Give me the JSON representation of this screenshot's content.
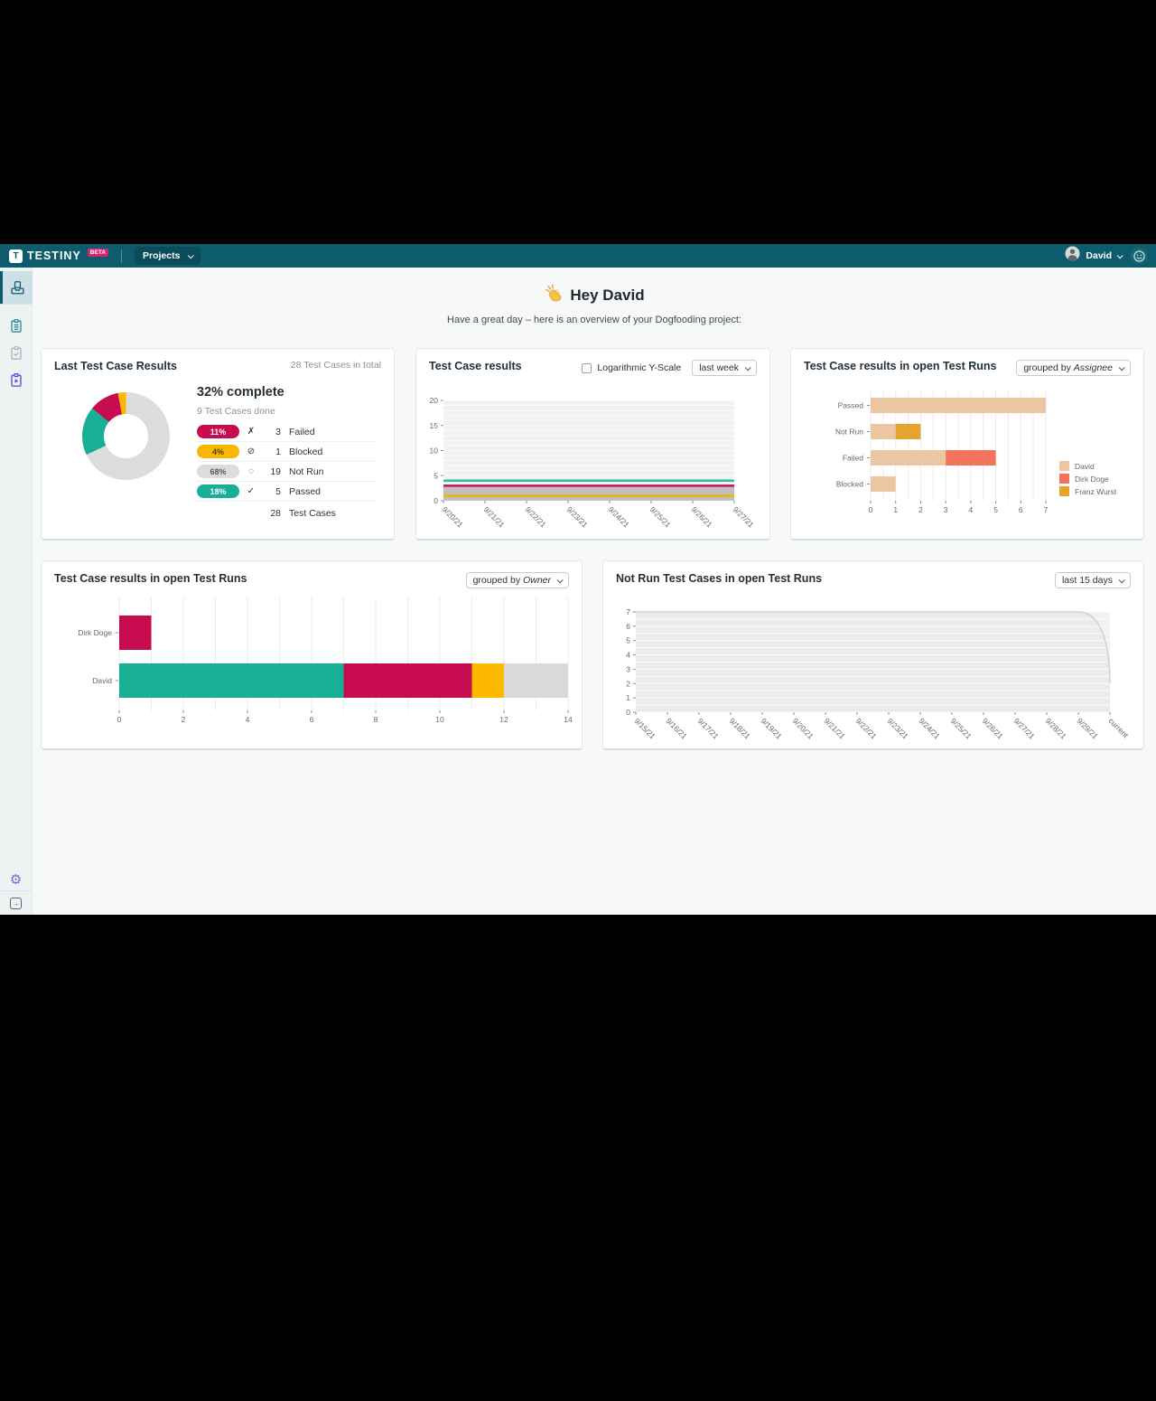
{
  "navbar": {
    "logo_text": "TESTINY",
    "logo_letter": "T",
    "beta_badge": "BETA",
    "projects_button": "Projects",
    "user_name": "David",
    "brand_color": "#0d5c6d"
  },
  "sidebar": {
    "icons": [
      "dashboard-icon",
      "test-cases-icon",
      "test-plans-icon",
      "test-runs-icon",
      "settings-gear-icon",
      "collapse-sidebar-icon"
    ]
  },
  "header": {
    "greeting": "Hey David",
    "subtitle": "Have a great day – here is an overview of your Dogfooding project:"
  },
  "cards": {
    "last_results": {
      "title": "Last Test Case Results",
      "total_note": "28 Test Cases in total",
      "complete": "32% complete",
      "done_label": "9 Test Cases done",
      "rows": [
        {
          "pct": "11%",
          "icon": "✗",
          "count": "3",
          "label": "Failed",
          "color": "#c60b4e",
          "text_color": "#ffffff"
        },
        {
          "pct": "4%",
          "icon": "⊘",
          "count": "1",
          "label": "Blocked",
          "color": "#f8b700",
          "text_color": "#5c4500"
        },
        {
          "pct": "68%",
          "icon": "◌",
          "count": "19",
          "label": "Not Run",
          "color": "#dcdcdc",
          "text_color": "#55595c"
        },
        {
          "pct": "18%",
          "icon": "✓",
          "count": "5",
          "label": "Passed",
          "color": "#17b094",
          "text_color": "#ffffff"
        }
      ],
      "total_count": "28",
      "total_text": "Test Cases"
    },
    "results_line": {
      "title": "Test Case results",
      "checkbox_label": "Logarithmic Y-Scale",
      "range_select": "last week"
    },
    "by_assignee": {
      "title": "Test Case results in open Test Runs",
      "select_prefix": "grouped by ",
      "select_value": "Assignee"
    },
    "by_owner": {
      "title": "Test Case results in open Test Runs",
      "select_prefix": "grouped by ",
      "select_value": "Owner"
    },
    "not_run": {
      "title": "Not Run Test Cases in open Test Runs",
      "range_select": "last 15 days"
    }
  },
  "chart_data": [
    {
      "id": "last-results-donut",
      "type": "pie",
      "title": "Last Test Case Results",
      "donut": true,
      "total": 28,
      "slices": [
        {
          "label": "Not Run",
          "value": 19,
          "pct": 68,
          "color": "#dcdcdc"
        },
        {
          "label": "Passed",
          "value": 5,
          "pct": 18,
          "color": "#17b094"
        },
        {
          "label": "Failed",
          "value": 3,
          "pct": 11,
          "color": "#c60b4e"
        },
        {
          "label": "Blocked",
          "value": 1,
          "pct": 4,
          "color": "#f8b700"
        }
      ]
    },
    {
      "id": "test-case-results",
      "type": "line",
      "title": "Test Case results",
      "x": [
        "9/20/21",
        "9/21/21",
        "9/22/21",
        "9/23/21",
        "9/24/21",
        "9/25/21",
        "9/26/21",
        "9/27/21"
      ],
      "ylim": [
        0,
        20
      ],
      "yticks": [
        0,
        5,
        10,
        15,
        20
      ],
      "grid_step": 1,
      "series": [
        {
          "name": "Not Run",
          "color": "rgba(150,150,155,0)",
          "fill": "rgba(150,150,155,0.55)",
          "width": 0,
          "values": [
            3,
            3,
            3,
            3,
            3,
            3,
            3,
            3
          ]
        },
        {
          "name": "Passed",
          "color": "#2bbfa4",
          "width": 2.5,
          "values": [
            4,
            4,
            4,
            4,
            4,
            4,
            4,
            4
          ]
        },
        {
          "name": "Failed",
          "color": "#c8104e",
          "width": 2.5,
          "values": [
            3,
            3,
            3,
            3,
            3,
            3,
            3,
            3
          ]
        },
        {
          "name": "Blocked",
          "color": "#f0b400",
          "width": 2.5,
          "values": [
            1,
            1,
            1,
            1,
            1,
            1,
            1,
            1
          ]
        }
      ]
    },
    {
      "id": "open-runs-by-assignee",
      "type": "hbar-stacked",
      "title": "Test Case results in open Test Runs (grouped by Assignee)",
      "categories": [
        "Passed",
        "Not Run",
        "Failed",
        "Blocked"
      ],
      "series": [
        {
          "name": "David",
          "color": "#ecc6a2",
          "values": [
            7,
            1,
            3,
            1
          ]
        },
        {
          "name": "Dirk Doge",
          "color": "#f4735c",
          "values": [
            0,
            0,
            2,
            0
          ]
        },
        {
          "name": "Franz Wurst",
          "color": "#e5a42e",
          "values": [
            0,
            1,
            0,
            0
          ]
        }
      ],
      "xlim": [
        0,
        7
      ],
      "xticks": [
        0,
        1,
        2,
        3,
        4,
        5,
        6,
        7
      ],
      "grid_step": 0.5,
      "legend": true
    },
    {
      "id": "open-runs-by-owner",
      "type": "hbar-stacked",
      "title": "Test Case results in open Test Runs (grouped by Owner)",
      "categories": [
        "Dirk Doge",
        "David"
      ],
      "series": [
        {
          "name": "Passed",
          "color": "#17b094",
          "values": [
            0,
            7
          ]
        },
        {
          "name": "Failed",
          "color": "#c60b4e",
          "values": [
            1,
            4
          ]
        },
        {
          "name": "Blocked",
          "color": "#fdb800",
          "values": [
            0,
            1
          ]
        },
        {
          "name": "Not Run",
          "color": "#d9d9d9",
          "values": [
            0,
            2
          ]
        }
      ],
      "xlim": [
        0,
        14
      ],
      "xticks": [
        0,
        2,
        4,
        6,
        8,
        10,
        12,
        14
      ],
      "grid_step": 1,
      "legend": false
    },
    {
      "id": "not-run-open-runs",
      "type": "area",
      "title": "Not Run Test Cases in open Test Runs",
      "x": [
        "9/15/21",
        "9/16/21",
        "9/17/21",
        "9/18/21",
        "9/19/21",
        "9/20/21",
        "9/21/21",
        "9/22/21",
        "9/23/21",
        "9/24/21",
        "9/25/21",
        "9/26/21",
        "9/27/21",
        "9/28/21",
        "9/29/21",
        "current"
      ],
      "ylim": [
        0,
        7
      ],
      "yticks": [
        0,
        1,
        2,
        3,
        4,
        5,
        6,
        7
      ],
      "grid_step": 0.5,
      "grid_over_fill": true,
      "series": [
        {
          "name": "Not Run",
          "color": "#d2d2d6",
          "fill": "#ebebec",
          "width": 1.5,
          "drop_curve": true,
          "values": [
            7,
            7,
            7,
            7,
            7,
            7,
            7,
            7,
            7,
            7,
            7,
            7,
            7,
            7,
            7,
            2
          ]
        }
      ]
    }
  ]
}
